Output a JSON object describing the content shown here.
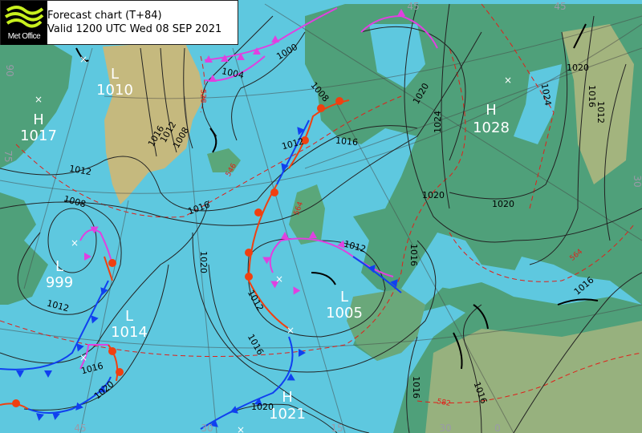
{
  "header": {
    "logo_text": "Met Office",
    "title": "Forecast chart (T+84)",
    "valid": "Valid 1200 UTC Wed 08 SEP 2021"
  },
  "colors": {
    "sea": "#5ec8df",
    "land_low": "#4fa07a",
    "land_high": "#c8bc80",
    "ice": "#c5b97e",
    "isobar": "#222222",
    "thickness": "#e0201a",
    "cold_front": "#1040f0",
    "warm_front": "#f04010",
    "occluded_front": "#e040e0",
    "trough": "#000000"
  },
  "pressure_centres": [
    {
      "type": "L",
      "value": "1010"
    },
    {
      "type": "H",
      "value": "1017"
    },
    {
      "type": "L",
      "value": "999"
    },
    {
      "type": "L",
      "value": "1014"
    },
    {
      "type": "L",
      "value": "1005"
    },
    {
      "type": "H",
      "value": "1028"
    },
    {
      "type": "H",
      "value": "1021"
    }
  ],
  "isobar_labels": [
    "1000",
    "1004",
    "1008",
    "1016",
    "1012",
    "1008",
    "1012",
    "1008",
    "1016",
    "1012",
    "1016",
    "1020",
    "1024",
    "1020",
    "1020",
    "1024",
    "1020",
    "1016",
    "1012",
    "1020",
    "1012",
    "1016",
    "1012",
    "1016",
    "1012",
    "1016",
    "1020",
    "1020",
    "1016",
    "1016",
    "1016"
  ],
  "thickness_labels": [
    "528",
    "546",
    "564",
    "564",
    "582"
  ],
  "grid_labels": [
    "45",
    "45",
    "30",
    "90",
    "75",
    "45",
    "30",
    "15",
    "30",
    "0"
  ]
}
